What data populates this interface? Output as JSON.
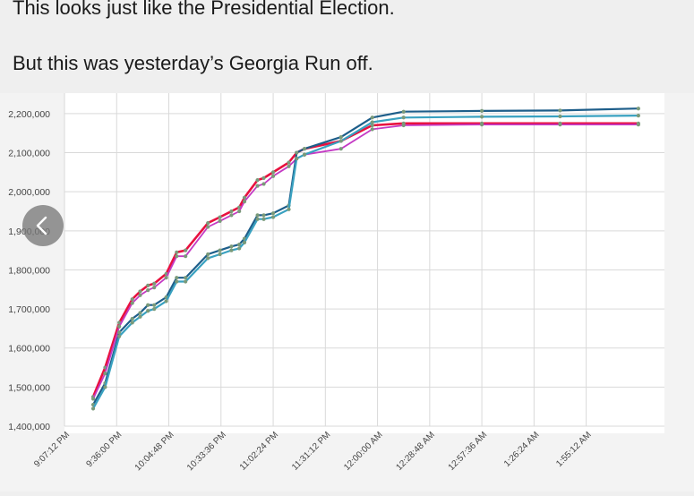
{
  "post": {
    "line1": "This looks just like the Presidential Election.",
    "line2": "But this was yesterday’s Georgia Run off."
  },
  "nav": {
    "back_icon": "chevron-left-icon"
  },
  "colors": {
    "red": "#e8103e",
    "magenta": "#c43ac4",
    "teal": "#1e5e8a",
    "cyan": "#39a1c0",
    "grid": "#d9d9d9",
    "marker": "#7a9a7a"
  },
  "chart_data": {
    "type": "line",
    "title": "",
    "xlabel": "",
    "ylabel": "",
    "ylim": [
      1400000,
      2225000
    ],
    "yticks": [
      1400000,
      1500000,
      1600000,
      1700000,
      1800000,
      1900000,
      2000000,
      2100000,
      2200000
    ],
    "ytick_labels": [
      "1,400,000",
      "1,500,000",
      "1,600,000",
      "1,700,000",
      "1,800,000",
      "1,900,000",
      "2,000,000",
      "2,100,000",
      "2,200,000"
    ],
    "xlim": [
      0,
      11.5
    ],
    "xtick_labels": [
      "9:07:12 PM",
      "9:36:00 PM",
      "10:04:48 PM",
      "10:33:36 PM",
      "11:02:24 PM",
      "11:31:12 PM",
      "12:00:00 AM",
      "12:28:48 AM",
      "12:57:36 AM",
      "1:26:24 AM",
      "1:55:12 AM"
    ],
    "series": [
      {
        "name": "red",
        "color": "#e8103e",
        "width": 2.6,
        "x": [
          0.55,
          0.78,
          1.05,
          1.3,
          1.45,
          1.6,
          1.72,
          1.95,
          2.15,
          2.32,
          2.75,
          2.98,
          3.2,
          3.35,
          3.45,
          3.7,
          3.82,
          4.0,
          4.3,
          4.45,
          4.6,
          5.3,
          5.9,
          6.5,
          8.0,
          9.5,
          11.0
        ],
        "y": [
          1475000,
          1550000,
          1665000,
          1725000,
          1745000,
          1760000,
          1765000,
          1790000,
          1845000,
          1850000,
          1920000,
          1935000,
          1950000,
          1960000,
          1985000,
          2030000,
          2035000,
          2050000,
          2075000,
          2100000,
          2110000,
          2130000,
          2170000,
          2175000,
          2175000,
          2175000,
          2175000
        ]
      },
      {
        "name": "magenta",
        "color": "#c43ac4",
        "width": 1.8,
        "x": [
          0.55,
          0.78,
          1.05,
          1.3,
          1.45,
          1.6,
          1.72,
          1.95,
          2.15,
          2.32,
          2.75,
          2.98,
          3.2,
          3.35,
          3.45,
          3.7,
          3.82,
          4.0,
          4.3,
          4.45,
          4.6,
          5.3,
          5.9,
          6.5,
          8.0,
          9.5,
          11.0
        ],
        "y": [
          1470000,
          1535000,
          1655000,
          1715000,
          1735000,
          1748000,
          1755000,
          1780000,
          1835000,
          1835000,
          1910000,
          1925000,
          1940000,
          1950000,
          1975000,
          2015000,
          2020000,
          2040000,
          2065000,
          2085000,
          2095000,
          2110000,
          2160000,
          2170000,
          2172000,
          2172000,
          2172000
        ]
      },
      {
        "name": "teal",
        "color": "#1e5e8a",
        "width": 2.2,
        "x": [
          0.55,
          0.78,
          1.05,
          1.3,
          1.45,
          1.6,
          1.72,
          1.95,
          2.15,
          2.32,
          2.75,
          2.98,
          3.2,
          3.35,
          3.45,
          3.7,
          3.82,
          4.0,
          4.3,
          4.45,
          4.6,
          5.3,
          5.9,
          6.5,
          8.0,
          9.5,
          11.0
        ],
        "y": [
          1455000,
          1510000,
          1640000,
          1675000,
          1690000,
          1710000,
          1710000,
          1730000,
          1780000,
          1780000,
          1840000,
          1850000,
          1860000,
          1865000,
          1880000,
          1940000,
          1940000,
          1945000,
          1965000,
          2100000,
          2110000,
          2140000,
          2190000,
          2205000,
          2207000,
          2208000,
          2213000
        ]
      },
      {
        "name": "cyan",
        "color": "#39a1c0",
        "width": 2.2,
        "x": [
          0.55,
          0.78,
          1.05,
          1.3,
          1.45,
          1.6,
          1.72,
          1.95,
          2.15,
          2.32,
          2.75,
          2.98,
          3.2,
          3.35,
          3.45,
          3.7,
          3.82,
          4.0,
          4.3,
          4.45,
          4.6,
          5.3,
          5.9,
          6.5,
          8.0,
          9.5,
          11.0
        ],
        "y": [
          1445000,
          1500000,
          1630000,
          1665000,
          1680000,
          1695000,
          1700000,
          1720000,
          1770000,
          1770000,
          1830000,
          1840000,
          1850000,
          1855000,
          1870000,
          1930000,
          1930000,
          1935000,
          1955000,
          2085000,
          2095000,
          2130000,
          2178000,
          2190000,
          2192000,
          2193000,
          2195000
        ]
      }
    ]
  }
}
